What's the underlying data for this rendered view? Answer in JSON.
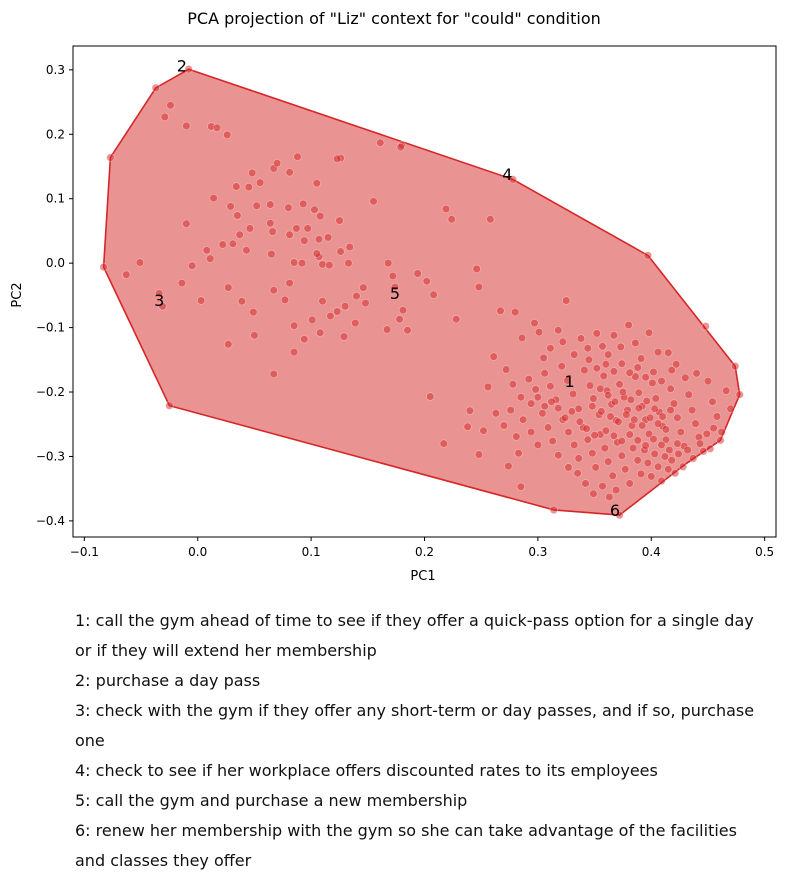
{
  "chart_data": {
    "type": "scatter",
    "title": "PCA projection of \"Liz\" context for \"could\" condition",
    "xlabel": "PC1",
    "ylabel": "PC2",
    "xlim": [
      -0.11,
      0.51
    ],
    "ylim": [
      -0.425,
      0.337
    ],
    "xticks": [
      -0.1,
      0.0,
      0.1,
      0.2,
      0.3,
      0.4,
      0.5
    ],
    "xtick_labels": [
      "−0.1",
      "0.0",
      "0.1",
      "0.2",
      "0.3",
      "0.4",
      "0.5"
    ],
    "yticks": [
      -0.4,
      -0.3,
      -0.2,
      -0.1,
      0.0,
      0.1,
      0.2,
      0.3
    ],
    "ytick_labels": [
      "−0.4",
      "−0.3",
      "−0.2",
      "−0.1",
      "0.0",
      "0.1",
      "0.2",
      "0.3"
    ],
    "color": "#d62728",
    "hull": [
      [
        -0.008,
        0.301
      ],
      [
        0.278,
        0.13
      ],
      [
        0.397,
        0.012
      ],
      [
        0.474,
        -0.16
      ],
      [
        0.478,
        -0.204
      ],
      [
        0.461,
        -0.275
      ],
      [
        0.43,
        -0.312
      ],
      [
        0.372,
        -0.391
      ],
      [
        0.314,
        -0.383
      ],
      [
        -0.025,
        -0.221
      ],
      [
        -0.083,
        -0.006
      ],
      [
        -0.077,
        0.164
      ],
      [
        -0.037,
        0.272
      ]
    ],
    "annotations": [
      {
        "label": "1",
        "x": 0.328,
        "y": -0.183
      },
      {
        "label": "2",
        "x": -0.014,
        "y": 0.307
      },
      {
        "label": "3",
        "x": -0.034,
        "y": -0.057
      },
      {
        "label": "4",
        "x": 0.273,
        "y": 0.138
      },
      {
        "label": "5",
        "x": 0.174,
        "y": -0.046
      },
      {
        "label": "6",
        "x": 0.368,
        "y": -0.383
      }
    ],
    "points": [
      [
        -0.008,
        0.301
      ],
      [
        -0.037,
        0.272
      ],
      [
        -0.077,
        0.164
      ],
      [
        -0.083,
        -0.006
      ],
      [
        -0.025,
        -0.221
      ],
      [
        0.372,
        -0.391
      ],
      [
        0.314,
        -0.383
      ],
      [
        0.474,
        -0.16
      ],
      [
        0.478,
        -0.204
      ],
      [
        0.461,
        -0.275
      ],
      [
        0.397,
        0.012
      ],
      [
        0.278,
        0.13
      ],
      [
        0.448,
        -0.098
      ],
      [
        0.325,
        -0.058
      ],
      [
        -0.024,
        0.245
      ],
      [
        -0.029,
        0.227
      ],
      [
        -0.01,
        0.213
      ],
      [
        0.012,
        0.212
      ],
      [
        0.017,
        0.21
      ],
      [
        0.026,
        0.199
      ],
      [
        0.048,
        0.14
      ],
      [
        0.067,
        0.147
      ],
      [
        0.07,
        0.155
      ],
      [
        0.088,
        0.165
      ],
      [
        0.081,
        0.141
      ],
      [
        0.055,
        0.125
      ],
      [
        0.034,
        0.119
      ],
      [
        0.045,
        0.118
      ],
      [
        0.014,
        0.101
      ],
      [
        0.029,
        0.088
      ],
      [
        0.052,
        0.089
      ],
      [
        0.064,
        0.091
      ],
      [
        0.08,
        0.086
      ],
      [
        0.093,
        0.092
      ],
      [
        0.103,
        0.083
      ],
      [
        0.108,
        0.073
      ],
      [
        0.125,
        0.066
      ],
      [
        0.064,
        0.062
      ],
      [
        0.035,
        0.074
      ],
      [
        -0.01,
        0.061
      ],
      [
        0.022,
        0.029
      ],
      [
        0.037,
        0.044
      ],
      [
        0.046,
        0.054
      ],
      [
        0.066,
        0.049
      ],
      [
        0.081,
        0.044
      ],
      [
        0.087,
        0.054
      ],
      [
        0.094,
        0.035
      ],
      [
        0.097,
        0.054
      ],
      [
        0.107,
        0.037
      ],
      [
        0.115,
        0.04
      ],
      [
        0.134,
        0.025
      ],
      [
        0.126,
        0.018
      ],
      [
        0.107,
        0.01
      ],
      [
        0.11,
        -0.002
      ],
      [
        0.105,
        0.015
      ],
      [
        0.092,
        0.0
      ],
      [
        0.085,
        0.001
      ],
      [
        0.065,
        0.014
      ],
      [
        0.043,
        0.02
      ],
      [
        0.031,
        0.03
      ],
      [
        0.008,
        0.02
      ],
      [
        0.011,
        0.007
      ],
      [
        -0.005,
        -0.004
      ],
      [
        -0.063,
        -0.018
      ],
      [
        -0.051,
        0.001
      ],
      [
        -0.014,
        -0.031
      ],
      [
        0.003,
        -0.058
      ],
      [
        0.027,
        -0.038
      ],
      [
        0.039,
        -0.059
      ],
      [
        0.049,
        -0.076
      ],
      [
        0.05,
        -0.112
      ],
      [
        0.027,
        -0.126
      ],
      [
        0.067,
        -0.042
      ],
      [
        0.077,
        -0.057
      ],
      [
        0.081,
        -0.031
      ],
      [
        0.085,
        -0.097
      ],
      [
        0.101,
        -0.088
      ],
      [
        0.094,
        -0.118
      ],
      [
        0.108,
        -0.108
      ],
      [
        0.11,
        -0.059
      ],
      [
        0.117,
        -0.082
      ],
      [
        0.123,
        -0.075
      ],
      [
        0.13,
        -0.067
      ],
      [
        0.14,
        -0.051
      ],
      [
        0.146,
        -0.038
      ],
      [
        0.148,
        -0.062
      ],
      [
        0.139,
        -0.093
      ],
      [
        0.129,
        -0.114
      ],
      [
        0.133,
        0.0
      ],
      [
        0.116,
        -0.003
      ],
      [
        0.085,
        -0.138
      ],
      [
        0.067,
        -0.172
      ],
      [
        -0.031,
        -0.067
      ],
      [
        -0.034,
        -0.047
      ],
      [
        0.18,
        0.183
      ],
      [
        0.179,
        0.18
      ],
      [
        0.161,
        0.187
      ],
      [
        0.126,
        0.163
      ],
      [
        0.123,
        0.162
      ],
      [
        0.105,
        0.124
      ],
      [
        0.155,
        0.096
      ],
      [
        0.219,
        0.084
      ],
      [
        0.174,
        -0.037
      ],
      [
        0.181,
        -0.073
      ],
      [
        0.178,
        -0.087
      ],
      [
        0.185,
        -0.104
      ],
      [
        0.167,
        -0.103
      ],
      [
        0.172,
        -0.02
      ],
      [
        0.194,
        -0.016
      ],
      [
        0.202,
        -0.028
      ],
      [
        0.208,
        -0.049
      ],
      [
        0.224,
        0.068
      ],
      [
        0.258,
        0.068
      ],
      [
        0.246,
        -0.009
      ],
      [
        0.248,
        -0.037
      ],
      [
        0.228,
        -0.087
      ],
      [
        0.205,
        -0.207
      ],
      [
        0.217,
        -0.28
      ],
      [
        0.238,
        -0.254
      ],
      [
        0.168,
        0.0
      ],
      [
        0.267,
        -0.074
      ],
      [
        0.28,
        -0.076
      ],
      [
        0.286,
        -0.116
      ],
      [
        0.297,
        -0.093
      ],
      [
        0.301,
        -0.107
      ],
      [
        0.305,
        -0.147
      ],
      [
        0.311,
        -0.132
      ],
      [
        0.318,
        -0.104
      ],
      [
        0.322,
        -0.122
      ],
      [
        0.332,
        -0.142
      ],
      [
        0.338,
        -0.117
      ],
      [
        0.344,
        -0.132
      ],
      [
        0.352,
        -0.109
      ],
      [
        0.357,
        -0.129
      ],
      [
        0.362,
        -0.142
      ],
      [
        0.367,
        -0.112
      ],
      [
        0.373,
        -0.13
      ],
      [
        0.38,
        -0.096
      ],
      [
        0.386,
        -0.124
      ],
      [
        0.391,
        -0.148
      ],
      [
        0.398,
        -0.108
      ],
      [
        0.406,
        -0.138
      ],
      [
        0.415,
        -0.139
      ],
      [
        0.422,
        -0.157
      ],
      [
        0.261,
        -0.145
      ],
      [
        0.272,
        -0.165
      ],
      [
        0.256,
        -0.192
      ],
      [
        0.278,
        -0.188
      ],
      [
        0.285,
        -0.208
      ],
      [
        0.292,
        -0.18
      ],
      [
        0.298,
        -0.196
      ],
      [
        0.306,
        -0.171
      ],
      [
        0.311,
        -0.191
      ],
      [
        0.316,
        -0.212
      ],
      [
        0.321,
        -0.16
      ],
      [
        0.326,
        -0.182
      ],
      [
        0.331,
        -0.203
      ],
      [
        0.336,
        -0.226
      ],
      [
        0.341,
        -0.166
      ],
      [
        0.346,
        -0.19
      ],
      [
        0.349,
        -0.21
      ],
      [
        0.354,
        -0.235
      ],
      [
        0.358,
        -0.175
      ],
      [
        0.361,
        -0.198
      ],
      [
        0.365,
        -0.219
      ],
      [
        0.369,
        -0.244
      ],
      [
        0.372,
        -0.188
      ],
      [
        0.376,
        -0.208
      ],
      [
        0.379,
        -0.228
      ],
      [
        0.383,
        -0.252
      ],
      [
        0.386,
        -0.176
      ],
      [
        0.389,
        -0.201
      ],
      [
        0.392,
        -0.222
      ],
      [
        0.395,
        -0.243
      ],
      [
        0.398,
        -0.265
      ],
      [
        0.401,
        -0.186
      ],
      [
        0.404,
        -0.21
      ],
      [
        0.407,
        -0.231
      ],
      [
        0.41,
        -0.253
      ],
      [
        0.413,
        -0.274
      ],
      [
        0.417,
        -0.195
      ],
      [
        0.42,
        -0.218
      ],
      [
        0.423,
        -0.24
      ],
      [
        0.426,
        -0.262
      ],
      [
        0.429,
        -0.284
      ],
      [
        0.433,
        -0.204
      ],
      [
        0.436,
        -0.228
      ],
      [
        0.439,
        -0.249
      ],
      [
        0.442,
        -0.27
      ],
      [
        0.446,
        -0.292
      ],
      [
        0.45,
        -0.183
      ],
      [
        0.454,
        -0.215
      ],
      [
        0.458,
        -0.238
      ],
      [
        0.462,
        -0.262
      ],
      [
        0.466,
        -0.198
      ],
      [
        0.47,
        -0.226
      ],
      [
        0.44,
        -0.171
      ],
      [
        0.43,
        -0.178
      ],
      [
        0.418,
        -0.166
      ],
      [
        0.455,
        -0.256
      ],
      [
        0.263,
        -0.233
      ],
      [
        0.27,
        -0.252
      ],
      [
        0.276,
        -0.228
      ],
      [
        0.281,
        -0.269
      ],
      [
        0.287,
        -0.243
      ],
      [
        0.294,
        -0.262
      ],
      [
        0.3,
        -0.282
      ],
      [
        0.304,
        -0.233
      ],
      [
        0.309,
        -0.255
      ],
      [
        0.313,
        -0.276
      ],
      [
        0.318,
        -0.298
      ],
      [
        0.322,
        -0.243
      ],
      [
        0.327,
        -0.262
      ],
      [
        0.332,
        -0.282
      ],
      [
        0.336,
        -0.303
      ],
      [
        0.34,
        -0.255
      ],
      [
        0.344,
        -0.274
      ],
      [
        0.348,
        -0.295
      ],
      [
        0.351,
        -0.317
      ],
      [
        0.355,
        -0.266
      ],
      [
        0.359,
        -0.287
      ],
      [
        0.362,
        -0.308
      ],
      [
        0.366,
        -0.33
      ],
      [
        0.37,
        -0.278
      ],
      [
        0.374,
        -0.299
      ],
      [
        0.377,
        -0.32
      ],
      [
        0.381,
        -0.342
      ],
      [
        0.384,
        -0.287
      ],
      [
        0.388,
        -0.306
      ],
      [
        0.391,
        -0.327
      ],
      [
        0.394,
        -0.29
      ],
      [
        0.397,
        -0.31
      ],
      [
        0.4,
        -0.331
      ],
      [
        0.403,
        -0.296
      ],
      [
        0.406,
        -0.316
      ],
      [
        0.409,
        -0.338
      ],
      [
        0.412,
        -0.3
      ],
      [
        0.415,
        -0.32
      ],
      [
        0.418,
        -0.306
      ],
      [
        0.421,
        -0.326
      ],
      [
        0.424,
        -0.296
      ],
      [
        0.428,
        -0.316
      ],
      [
        0.432,
        -0.29
      ],
      [
        0.437,
        -0.303
      ],
      [
        0.443,
        -0.28
      ],
      [
        0.449,
        -0.265
      ],
      [
        0.452,
        -0.288
      ],
      [
        0.357,
        -0.346
      ],
      [
        0.349,
        -0.358
      ],
      [
        0.363,
        -0.363
      ],
      [
        0.369,
        -0.352
      ],
      [
        0.342,
        -0.342
      ],
      [
        0.335,
        -0.326
      ],
      [
        0.327,
        -0.317
      ],
      [
        0.283,
        -0.295
      ],
      [
        0.274,
        -0.315
      ],
      [
        0.285,
        -0.347
      ],
      [
        0.248,
        -0.297
      ],
      [
        0.24,
        -0.229
      ],
      [
        0.252,
        -0.26
      ],
      [
        0.345,
        -0.15
      ],
      [
        0.352,
        -0.163
      ],
      [
        0.36,
        -0.157
      ],
      [
        0.367,
        -0.168
      ],
      [
        0.374,
        -0.156
      ],
      [
        0.381,
        -0.17
      ],
      [
        0.388,
        -0.162
      ],
      [
        0.395,
        -0.177
      ],
      [
        0.402,
        -0.169
      ],
      [
        0.409,
        -0.183
      ],
      [
        0.348,
        -0.222
      ],
      [
        0.356,
        -0.23
      ],
      [
        0.364,
        -0.238
      ],
      [
        0.371,
        -0.246
      ],
      [
        0.378,
        -0.235
      ],
      [
        0.385,
        -0.243
      ],
      [
        0.392,
        -0.252
      ],
      [
        0.399,
        -0.24
      ],
      [
        0.406,
        -0.249
      ],
      [
        0.413,
        -0.258
      ],
      [
        0.36,
        -0.26
      ],
      [
        0.367,
        -0.268
      ],
      [
        0.374,
        -0.276
      ],
      [
        0.381,
        -0.266
      ],
      [
        0.388,
        -0.275
      ],
      [
        0.395,
        -0.283
      ],
      [
        0.402,
        -0.273
      ],
      [
        0.409,
        -0.282
      ],
      [
        0.416,
        -0.29
      ],
      [
        0.423,
        -0.28
      ],
      [
        0.355,
        -0.195
      ],
      [
        0.362,
        -0.205
      ],
      [
        0.368,
        -0.215
      ],
      [
        0.375,
        -0.2
      ],
      [
        0.382,
        -0.212
      ],
      [
        0.389,
        -0.225
      ],
      [
        0.396,
        -0.214
      ],
      [
        0.403,
        -0.226
      ],
      [
        0.41,
        -0.238
      ],
      [
        0.417,
        -0.228
      ],
      [
        0.337,
        -0.246
      ],
      [
        0.343,
        -0.257
      ],
      [
        0.35,
        -0.267
      ],
      [
        0.33,
        -0.23
      ],
      [
        0.324,
        -0.24
      ],
      [
        0.318,
        -0.225
      ],
      [
        0.312,
        -0.215
      ],
      [
        0.306,
        -0.222
      ],
      [
        0.3,
        -0.208
      ],
      [
        0.294,
        -0.218
      ]
    ]
  },
  "legend": [
    "1: call the gym ahead of time to see if they offer a quick-pass option for a single day or if they will extend her membership",
    "2: purchase a day pass",
    "3: check with the gym if they offer any short-term or day passes, and if so, purchase one",
    "4: check to see if her workplace offers discounted rates to its employees",
    "5: call the gym and purchase a new membership",
    "6: renew her membership with the gym so she can take advantage of the facilities and classes they offer"
  ]
}
